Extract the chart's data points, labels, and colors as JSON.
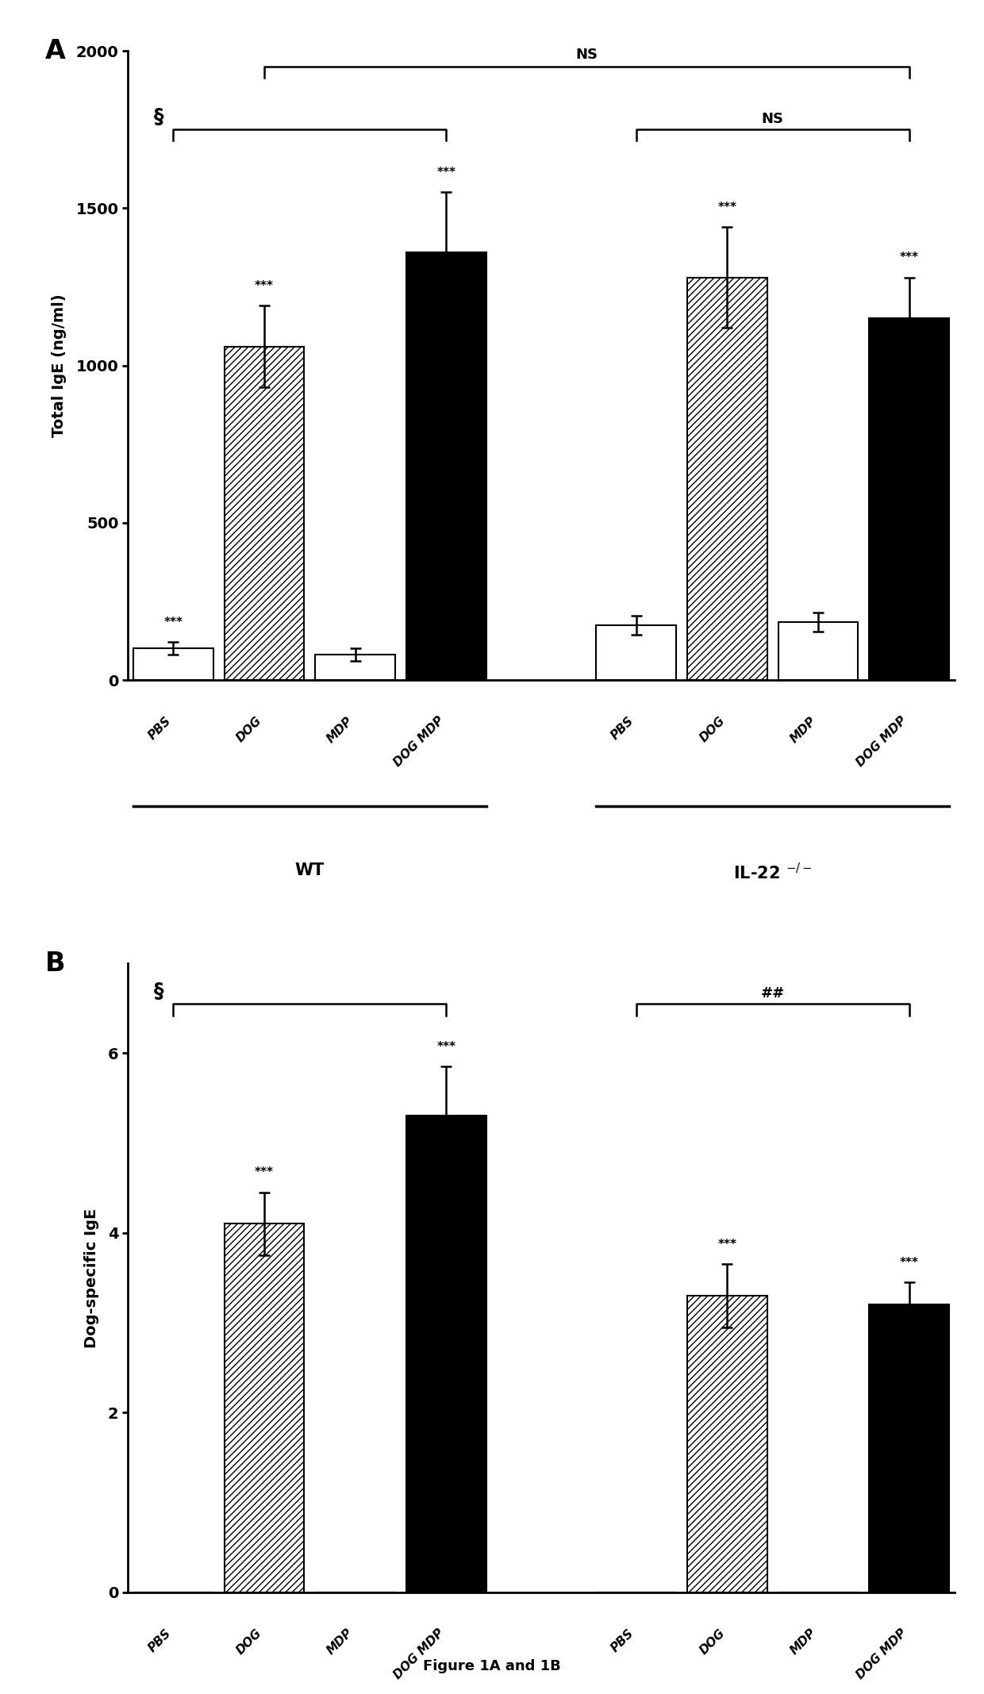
{
  "panel_A": {
    "title": "A",
    "ylabel": "Total IgE (ng/ml)",
    "ylim": [
      0,
      2000
    ],
    "yticks": [
      0,
      500,
      1000,
      1500,
      2000
    ],
    "categories": [
      "PBS",
      "DOG",
      "MDP",
      "DOG MDP"
    ],
    "values_wt": [
      100,
      1060,
      80,
      1360
    ],
    "values_il22": [
      175,
      1280,
      185,
      1150
    ],
    "errors_wt": [
      20,
      130,
      20,
      190
    ],
    "errors_il22": [
      30,
      160,
      30,
      130
    ],
    "stars_wt": [
      "***",
      "***",
      "",
      "***"
    ],
    "stars_il22": [
      "",
      "***",
      "",
      "***"
    ]
  },
  "panel_B": {
    "title": "B",
    "ylabel": "Dog-specific IgE",
    "ylim": [
      0,
      7
    ],
    "yticks": [
      0,
      2,
      4,
      6
    ],
    "categories": [
      "PBS",
      "DOG",
      "MDP",
      "DOG MDP"
    ],
    "values_wt": [
      0,
      4.1,
      0,
      5.3
    ],
    "values_il22": [
      0,
      3.3,
      0,
      3.2
    ],
    "errors_wt": [
      0,
      0.35,
      0,
      0.55
    ],
    "errors_il22": [
      0,
      0.35,
      0,
      0.25
    ],
    "stars_wt": [
      "",
      "***",
      "",
      "***"
    ],
    "stars_il22": [
      "",
      "***",
      "",
      "***"
    ]
  },
  "figure_label": "Figure 1A and 1B",
  "hatches": [
    "",
    "////",
    "",
    ""
  ],
  "facecolors": [
    "white",
    "white",
    "white",
    "black"
  ]
}
